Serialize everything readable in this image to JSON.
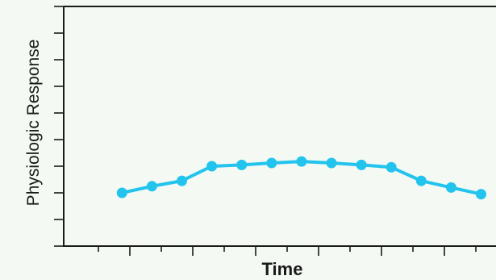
{
  "chart_data": {
    "type": "line",
    "title": "",
    "xlabel": "Time",
    "ylabel": "Physiologic Response",
    "x": [
      1,
      2,
      3,
      4,
      5,
      6,
      7,
      8,
      9,
      10,
      11,
      12,
      13
    ],
    "series": [
      {
        "values": [
          2.0,
          2.25,
          2.45,
          3.0,
          3.05,
          3.12,
          3.18,
          3.12,
          3.05,
          2.96,
          2.45,
          2.2,
          1.95
        ]
      }
    ],
    "xlim": [
      -0.95,
      13.5
    ],
    "ylim": [
      0,
      9
    ],
    "x_minor_ticks": 13,
    "y_minor_ticks": 9,
    "grid": false,
    "colors": {
      "series": "#22c4ee",
      "axis": "#1a1a1a",
      "background": "#f4f9f3"
    }
  }
}
